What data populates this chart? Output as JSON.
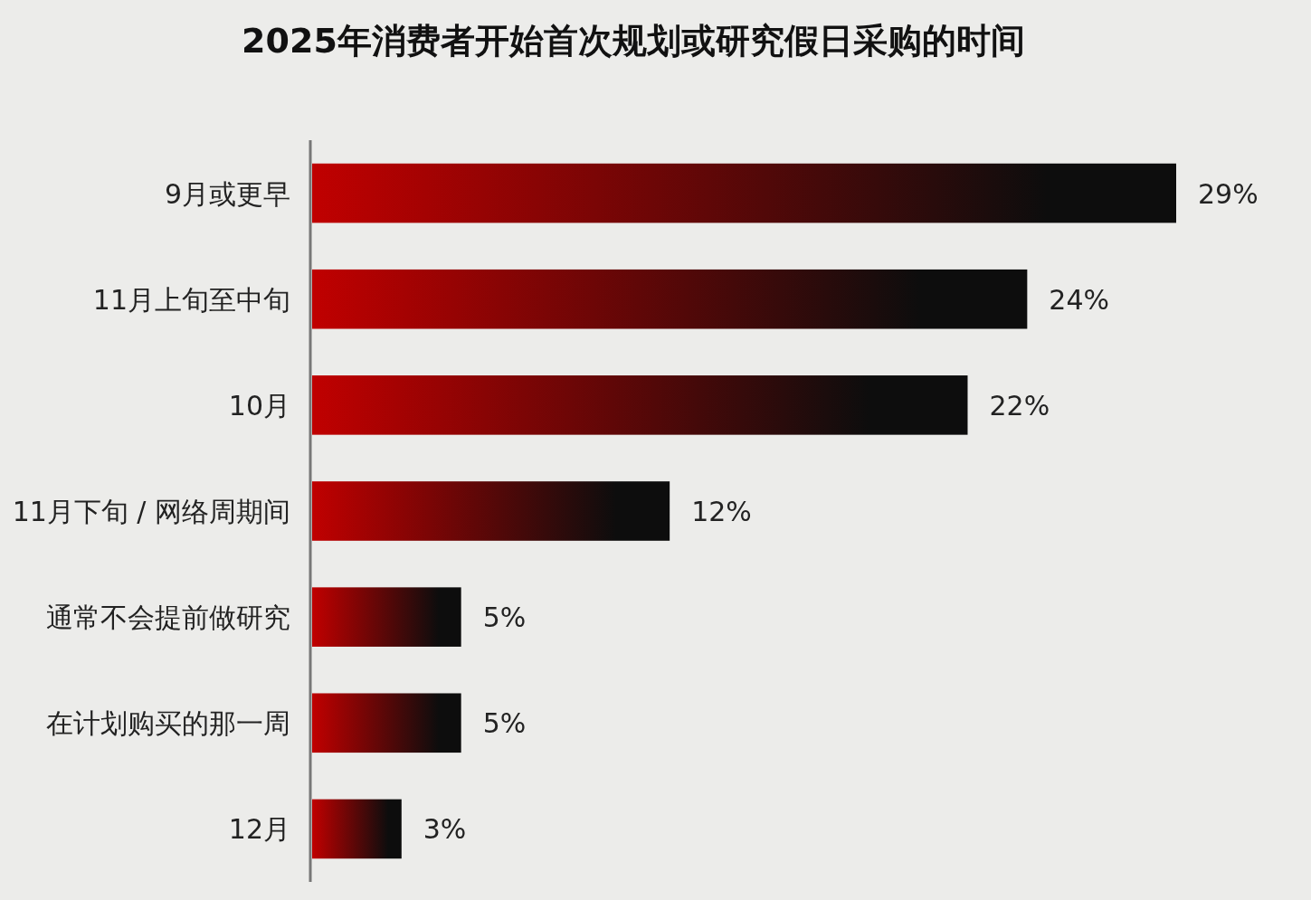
{
  "chart_data": {
    "type": "bar",
    "orientation": "horizontal",
    "title": "2025年消费者开始首次规划或研究假日采购的时间",
    "categories": [
      "9月或更早",
      "11月上旬至中旬",
      "10月",
      "11月下旬 / 网络周期间",
      "通常不会提前做研究",
      "在计划购买的那一周",
      "12月"
    ],
    "values": [
      29,
      24,
      22,
      12,
      5,
      5,
      3
    ],
    "color": "#c00000",
    "value_labels": [
      "29%",
      "24%",
      "22%",
      "12%",
      "5%",
      "5%",
      "3%"
    ]
  }
}
